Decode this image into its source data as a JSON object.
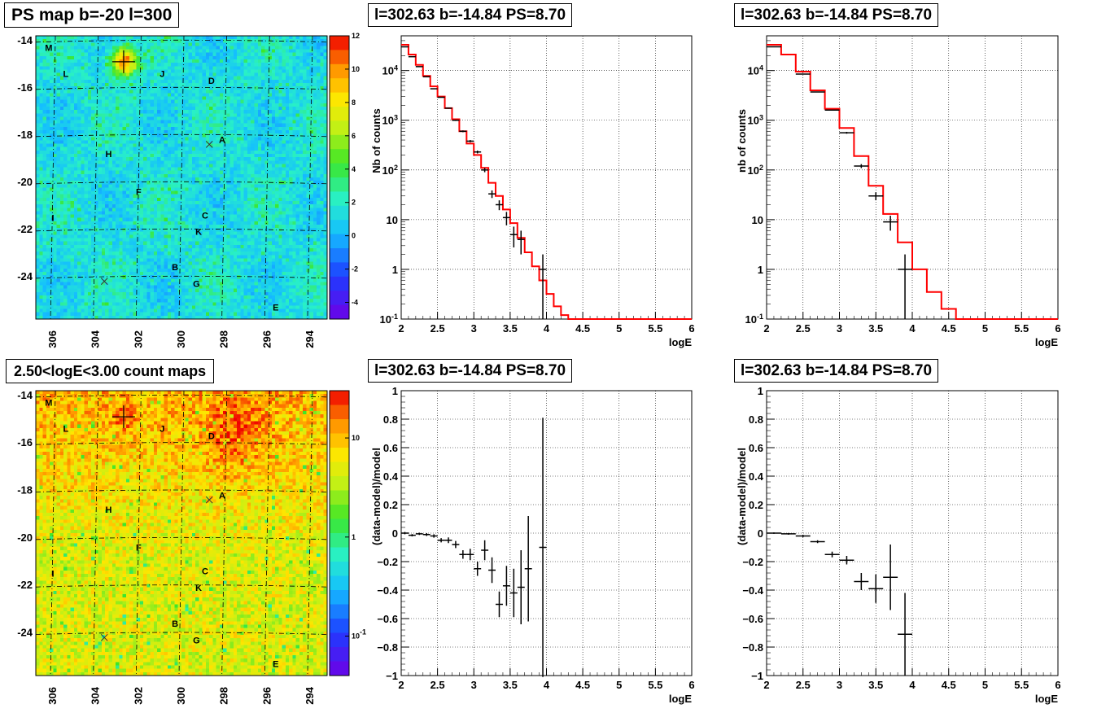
{
  "chart_data": [
    {
      "type": "heatmap",
      "title": "PS map b=-20 l=300",
      "xlim": [
        306.8,
        293.2
      ],
      "ylim": [
        -25.8,
        -13.8
      ],
      "x_ticks": [
        "306",
        "304",
        "302",
        "300",
        "298",
        "296",
        "294"
      ],
      "y_ticks": [
        "-14",
        "-16",
        "-18",
        "-20",
        "-22",
        "-24"
      ],
      "colorbar_ticks": [
        "12",
        "10",
        "8",
        "6",
        "4",
        "2",
        "0",
        "-2",
        "-4"
      ],
      "colorbar_range": [
        -5,
        12
      ],
      "colorbar_scale": "linear",
      "markers": [
        {
          "label": "M",
          "l": 306.2,
          "b": -14.3
        },
        {
          "label": "L",
          "l": 305.4,
          "b": -15.4
        },
        {
          "label": "J",
          "l": 300.9,
          "b": -15.4
        },
        {
          "label": "D",
          "l": 298.6,
          "b": -15.7
        },
        {
          "label": "A",
          "l": 298.1,
          "b": -18.2
        },
        {
          "label": "H",
          "l": 303.4,
          "b": -18.8
        },
        {
          "label": "F",
          "l": 302.0,
          "b": -20.4
        },
        {
          "label": "I",
          "l": 306.0,
          "b": -21.5
        },
        {
          "label": "C",
          "l": 298.9,
          "b": -21.4
        },
        {
          "label": "K",
          "l": 299.2,
          "b": -22.1
        },
        {
          "label": "B",
          "l": 300.3,
          "b": -23.6
        },
        {
          "label": "G",
          "l": 299.3,
          "b": -24.3
        },
        {
          "label": "E",
          "l": 295.6,
          "b": -25.3
        }
      ],
      "crosses": [
        {
          "l": 302.7,
          "b": -14.9,
          "size": "big"
        },
        {
          "l": 298.7,
          "b": -18.4,
          "size": "small"
        },
        {
          "l": 303.6,
          "b": -24.2,
          "size": "small"
        }
      ]
    },
    {
      "type": "line",
      "title": "l=302.63 b=-14.84 PS=8.70",
      "xlabel": "logE",
      "ylabel": "Nb of counts",
      "xlim": [
        2,
        6
      ],
      "ylim": [
        0.1,
        50000
      ],
      "y_scale": "log",
      "x_ticks": [
        "2",
        "2.5",
        "3",
        "3.5",
        "4",
        "4.5",
        "5",
        "5.5",
        "6"
      ],
      "y_ticks": [
        {
          "v": 0.1,
          "t": "10^{-1}"
        },
        {
          "v": 1,
          "t": "1"
        },
        {
          "v": 10,
          "t": "10"
        },
        {
          "v": 100,
          "t": "10^{2}"
        },
        {
          "v": 1000,
          "t": "10^{3}"
        },
        {
          "v": 10000,
          "t": "10^{4}"
        }
      ],
      "model": {
        "color": "#ff0000",
        "edges": [
          2,
          2.1,
          2.2,
          2.3,
          2.4,
          2.5,
          2.6,
          2.7,
          2.8,
          2.9,
          3.0,
          3.1,
          3.2,
          3.3,
          3.4,
          3.5,
          3.6,
          3.7,
          3.8,
          3.9,
          4.0,
          4.1,
          4.2,
          4.3,
          4.4,
          6.0
        ],
        "values": [
          33000,
          21000,
          13000,
          7800,
          4800,
          3000,
          1750,
          1050,
          600,
          340,
          200,
          110,
          55,
          30,
          16,
          8.5,
          4.3,
          2.2,
          1.15,
          0.6,
          0.32,
          0.18,
          0.12,
          0.1,
          0.1
        ]
      },
      "data": [
        {
          "x": 2.05,
          "y": 30000
        },
        {
          "x": 2.15,
          "y": 19000
        },
        {
          "x": 2.25,
          "y": 12000
        },
        {
          "x": 2.35,
          "y": 7500
        },
        {
          "x": 2.45,
          "y": 4300
        },
        {
          "x": 2.55,
          "y": 2900
        },
        {
          "x": 2.65,
          "y": 1750
        },
        {
          "x": 2.75,
          "y": 1000
        },
        {
          "x": 2.85,
          "y": 600
        },
        {
          "x": 2.95,
          "y": 380
        },
        {
          "x": 3.05,
          "y": 230
        },
        {
          "x": 3.15,
          "y": 100
        },
        {
          "x": 3.25,
          "y": 33
        },
        {
          "x": 3.35,
          "y": 20
        },
        {
          "x": 3.45,
          "y": 11
        },
        {
          "x": 3.55,
          "y": 5
        },
        {
          "x": 3.65,
          "y": 4
        },
        {
          "x": 3.95,
          "y": 1,
          "err_lo": 0.1
        }
      ]
    },
    {
      "type": "line",
      "title": "l=302.63 b=-14.84 PS=8.70",
      "xlabel": "logE",
      "ylabel": "nb of counts",
      "xlim": [
        2,
        6
      ],
      "ylim": [
        0.1,
        50000
      ],
      "y_scale": "log",
      "x_ticks": [
        "2",
        "2.5",
        "3",
        "3.5",
        "4",
        "4.5",
        "5",
        "5.5",
        "6"
      ],
      "y_ticks": [
        {
          "v": 0.1,
          "t": "10^{-1}"
        },
        {
          "v": 1,
          "t": "1"
        },
        {
          "v": 10,
          "t": "10"
        },
        {
          "v": 100,
          "t": "10^{2}"
        },
        {
          "v": 1000,
          "t": "10^{3}"
        },
        {
          "v": 10000,
          "t": "10^{4}"
        }
      ],
      "model": {
        "color": "#ff0000",
        "edges": [
          2,
          2.2,
          2.4,
          2.6,
          2.8,
          3.0,
          3.2,
          3.4,
          3.6,
          3.8,
          4.0,
          4.2,
          4.4,
          4.6,
          6.0
        ],
        "values": [
          33000,
          21000,
          9500,
          4000,
          1700,
          700,
          190,
          48,
          13,
          3.5,
          1.0,
          0.35,
          0.16,
          0.1
        ]
      },
      "data": [
        {
          "x": 2.1,
          "y": 30000
        },
        {
          "x": 2.5,
          "y": 8500
        },
        {
          "x": 2.7,
          "y": 3700
        },
        {
          "x": 2.9,
          "y": 1600
        },
        {
          "x": 3.1,
          "y": 560
        },
        {
          "x": 3.3,
          "y": 120
        },
        {
          "x": 3.5,
          "y": 30
        },
        {
          "x": 3.7,
          "y": 9
        },
        {
          "x": 3.9,
          "y": 1,
          "err_lo": 0.1
        }
      ]
    },
    {
      "type": "heatmap",
      "title": "2.50<logE<3.00 count maps",
      "xlim": [
        306.8,
        293.2
      ],
      "ylim": [
        -25.8,
        -13.8
      ],
      "x_ticks": [
        "306",
        "304",
        "302",
        "300",
        "298",
        "296",
        "294"
      ],
      "y_ticks": [
        "-14",
        "-16",
        "-18",
        "-20",
        "-22",
        "-24"
      ],
      "colorbar_scale": "log",
      "colorbar_ticks": [
        {
          "v": 10,
          "t": "10"
        },
        {
          "v": 1,
          "t": "1"
        },
        {
          "v": 0.1,
          "t": "10^{-1}"
        }
      ],
      "colorbar_range": [
        0.04,
        30
      ],
      "markers": [
        {
          "label": "M",
          "l": 306.2,
          "b": -14.3
        },
        {
          "label": "L",
          "l": 305.4,
          "b": -15.4
        },
        {
          "label": "J",
          "l": 300.9,
          "b": -15.4
        },
        {
          "label": "D",
          "l": 298.6,
          "b": -15.7
        },
        {
          "label": "A",
          "l": 298.1,
          "b": -18.2
        },
        {
          "label": "H",
          "l": 303.4,
          "b": -18.8
        },
        {
          "label": "F",
          "l": 302.0,
          "b": -20.4
        },
        {
          "label": "I",
          "l": 306.0,
          "b": -21.5
        },
        {
          "label": "C",
          "l": 298.9,
          "b": -21.4
        },
        {
          "label": "K",
          "l": 299.2,
          "b": -22.1
        },
        {
          "label": "B",
          "l": 300.3,
          "b": -23.6
        },
        {
          "label": "G",
          "l": 299.3,
          "b": -24.3
        },
        {
          "label": "E",
          "l": 295.6,
          "b": -25.3
        }
      ],
      "crosses": [
        {
          "l": 302.7,
          "b": -14.9,
          "size": "big"
        },
        {
          "l": 298.7,
          "b": -18.4,
          "size": "small"
        },
        {
          "l": 303.6,
          "b": -24.2,
          "size": "small"
        }
      ]
    },
    {
      "type": "scatter",
      "title": "l=302.63 b=-14.84 PS=8.70",
      "xlabel": "logE",
      "ylabel": "(data-model)/model",
      "xlim": [
        2,
        6
      ],
      "ylim": [
        -1,
        1
      ],
      "x_ticks": [
        "2",
        "2.5",
        "3",
        "3.5",
        "4",
        "4.5",
        "5",
        "5.5",
        "6"
      ],
      "y_ticks": [
        "1",
        "0.8",
        "0.6",
        "0.4",
        "0.2",
        "0",
        "-0.2",
        "-0.4",
        "-0.6",
        "-0.8",
        "-1"
      ],
      "data": [
        {
          "x": 2.05,
          "y": 0.0,
          "ex": 0.05,
          "ey": 0.008
        },
        {
          "x": 2.15,
          "y": -0.015,
          "ex": 0.05,
          "ey": 0.008
        },
        {
          "x": 2.25,
          "y": -0.005,
          "ex": 0.05,
          "ey": 0.008
        },
        {
          "x": 2.35,
          "y": -0.01,
          "ex": 0.05,
          "ey": 0.01
        },
        {
          "x": 2.45,
          "y": -0.02,
          "ex": 0.05,
          "ey": 0.012
        },
        {
          "x": 2.55,
          "y": -0.05,
          "ex": 0.05,
          "ey": 0.015
        },
        {
          "x": 2.65,
          "y": -0.05,
          "ex": 0.05,
          "ey": 0.02
        },
        {
          "x": 2.75,
          "y": -0.08,
          "ex": 0.05,
          "ey": 0.025
        },
        {
          "x": 2.85,
          "y": -0.15,
          "ex": 0.05,
          "ey": 0.03
        },
        {
          "x": 2.95,
          "y": -0.15,
          "ex": 0.05,
          "ey": 0.04
        },
        {
          "x": 3.05,
          "y": -0.25,
          "ex": 0.05,
          "ey": 0.05
        },
        {
          "x": 3.15,
          "y": -0.12,
          "ex": 0.05,
          "ey": 0.07
        },
        {
          "x": 3.25,
          "y": -0.26,
          "ex": 0.05,
          "ey": 0.09
        },
        {
          "x": 3.35,
          "y": -0.5,
          "ex": 0.05,
          "ey": 0.09
        },
        {
          "x": 3.45,
          "y": -0.37,
          "ex": 0.05,
          "ey": 0.14
        },
        {
          "x": 3.55,
          "y": -0.42,
          "ex": 0.05,
          "ey": 0.17
        },
        {
          "x": 3.65,
          "y": -0.38,
          "ex": 0.05,
          "ey": 0.26
        },
        {
          "x": 3.75,
          "y": -0.25,
          "ex": 0.05,
          "ey": 0.37
        },
        {
          "x": 3.95,
          "y": -0.1,
          "ex": 0.05,
          "ey": 0.91
        }
      ]
    },
    {
      "type": "scatter",
      "title": "l=302.63 b=-14.84 PS=8.70",
      "xlabel": "logE",
      "ylabel": "(data-model)/model",
      "xlim": [
        2,
        6
      ],
      "ylim": [
        -1,
        1
      ],
      "x_ticks": [
        "2",
        "2.5",
        "3",
        "3.5",
        "4",
        "4.5",
        "5",
        "5.5",
        "6"
      ],
      "y_ticks": [
        "1",
        "0.8",
        "0.6",
        "0.4",
        "0.2",
        "0",
        "-0.2",
        "-0.4",
        "-0.6",
        "-0.8",
        "-1"
      ],
      "data": [
        {
          "x": 2.1,
          "y": 0.0,
          "ex": 0.1,
          "ey": 0.005
        },
        {
          "x": 2.3,
          "y": -0.005,
          "ex": 0.1,
          "ey": 0.006
        },
        {
          "x": 2.5,
          "y": -0.02,
          "ex": 0.1,
          "ey": 0.008
        },
        {
          "x": 2.7,
          "y": -0.06,
          "ex": 0.1,
          "ey": 0.01
        },
        {
          "x": 2.9,
          "y": -0.15,
          "ex": 0.1,
          "ey": 0.02
        },
        {
          "x": 3.1,
          "y": -0.19,
          "ex": 0.1,
          "ey": 0.03
        },
        {
          "x": 3.3,
          "y": -0.34,
          "ex": 0.1,
          "ey": 0.06
        },
        {
          "x": 3.5,
          "y": -0.39,
          "ex": 0.1,
          "ey": 0.1
        },
        {
          "x": 3.7,
          "y": -0.31,
          "ex": 0.1,
          "ey": 0.23
        },
        {
          "x": 3.9,
          "y": -0.71,
          "ex": 0.1,
          "ey": 0.29
        }
      ]
    }
  ]
}
